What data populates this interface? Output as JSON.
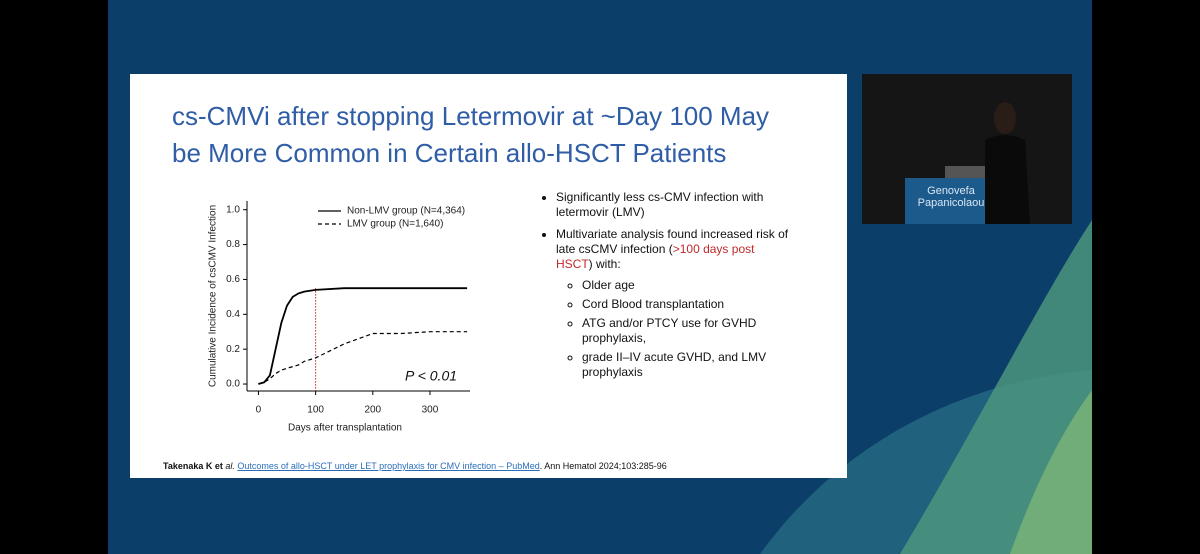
{
  "slide": {
    "title_lines": [
      "cs-CMVi after stopping Letermovir at ~Day 100 May",
      "be More Common in Certain allo-HSCT Patients"
    ],
    "bullets": [
      {
        "segments": [
          "Significantly less cs-CMV infection with letermovir (LMV)"
        ]
      },
      {
        "segments": [
          "Multivariate analysis found increased risk of late csCMV infection (",
          ">100 days post HSCT",
          ") with:"
        ],
        "sub": [
          "Older age",
          "Cord Blood transplantation",
          "ATG and/or PTCY use for GVHD prophylaxis,",
          "grade II–IV acute GVHD, and LMV prophylaxis"
        ]
      }
    ],
    "citation": {
      "authors": "Takenaka K et",
      "etal": " al.",
      "link": "Outcomes of allo-HSCT under LET prophylaxis for CMV infection – PubMed",
      "rest": ". Ann Hematol 2024;103:285-96"
    }
  },
  "speaker": {
    "sign_lines": [
      "Genovefa",
      "Papanicolaou"
    ]
  },
  "chart_data": {
    "type": "line",
    "y_label": "Cumulative Incidence of csCMV Infection",
    "x_label": "Days after transplantation",
    "annotation": "P < 0.01",
    "vline": 100,
    "vline_color": "#c0292b",
    "x": [
      0,
      10,
      20,
      30,
      40,
      50,
      60,
      70,
      80,
      100,
      150,
      200,
      250,
      300,
      365
    ],
    "series": [
      {
        "name": "Non-LMV group (N=4,364)",
        "color": "#000000",
        "style": "solid",
        "values": [
          0,
          0.01,
          0.05,
          0.2,
          0.35,
          0.45,
          0.5,
          0.52,
          0.53,
          0.54,
          0.55,
          0.55,
          0.55,
          0.55,
          0.55
        ]
      },
      {
        "name": "LMV group (N=1,640)",
        "color": "#000000",
        "style": "dashed",
        "values": [
          0,
          0.01,
          0.03,
          0.06,
          0.08,
          0.09,
          0.1,
          0.11,
          0.13,
          0.15,
          0.23,
          0.29,
          0.29,
          0.3,
          0.3
        ]
      }
    ],
    "xlim": [
      -20,
      370
    ],
    "ylim": [
      -0.04,
      1.05
    ],
    "xticks": [
      0,
      100,
      200,
      300
    ],
    "yticks": [
      {
        "value": 0,
        "label": "0.0"
      },
      0.2,
      0.4,
      0.6,
      0.8,
      {
        "value": 1,
        "label": "1.0"
      }
    ]
  }
}
